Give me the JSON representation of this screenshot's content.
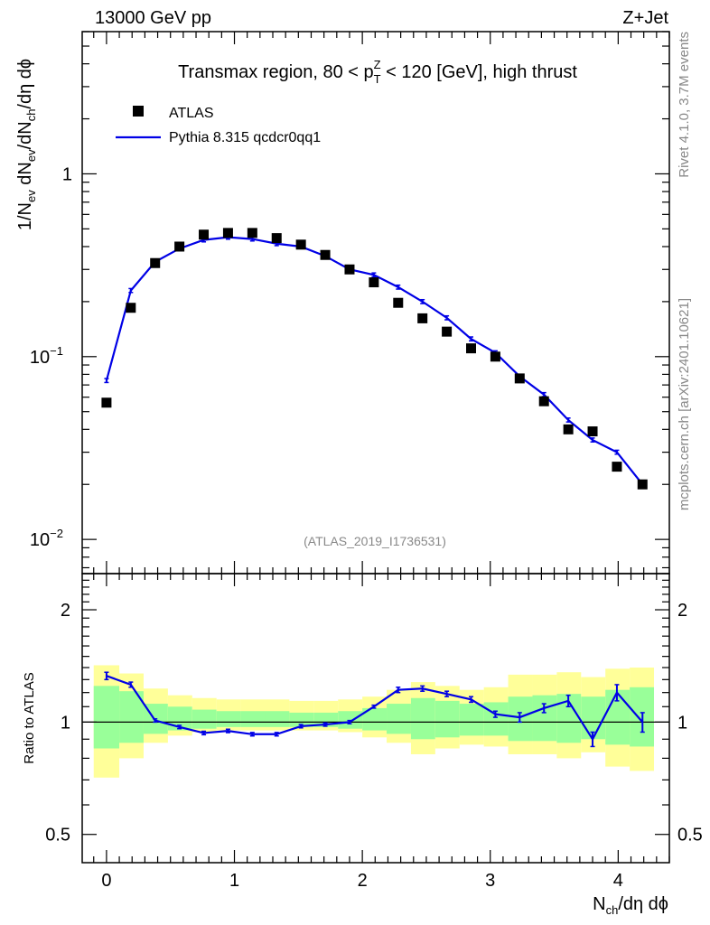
{
  "header": {
    "energy_label": "13000 GeV pp",
    "process_label": "Z+Jet"
  },
  "side_labels": {
    "rivet": "Rivet 4.1.0,  3.7M events",
    "mcplots": "mcplots.cern.ch [arXiv:2401.10621]"
  },
  "chart_data": [
    {
      "type": "line",
      "title": "Transmax region, 80 < pT^Z < 120 [GeV], high thrust",
      "title_parts": {
        "a": "Transmax region, 80 < p",
        "sup": "Z",
        "sub": "T",
        "b": " < 120 [GeV], high thrust"
      },
      "analysis_label": "(ATLAS_2019_I1736531)",
      "ylabel": "1/Nev dNev/dNch/dη dϕ",
      "yscale": "log",
      "ylim": [
        0.0065,
        6.0
      ],
      "y_ticks": [
        {
          "v": 0.01,
          "m": "10",
          "e": "−2"
        },
        {
          "v": 0.1,
          "m": "10",
          "e": "−1"
        },
        {
          "v": 1,
          "m": "1",
          "e": ""
        }
      ],
      "legend": [
        {
          "name": "ATLAS",
          "marker": "square",
          "color": "#000000"
        },
        {
          "name": "Pythia 8.315 qcdcr0qq1",
          "marker": "line",
          "color": "#0000e6"
        }
      ],
      "x": [
        0.0,
        0.19,
        0.38,
        0.57,
        0.76,
        0.95,
        1.14,
        1.33,
        1.52,
        1.71,
        1.9,
        2.09,
        2.28,
        2.47,
        2.66,
        2.85,
        3.04,
        3.23,
        3.42,
        3.61,
        3.8,
        3.99,
        4.19
      ],
      "series": [
        {
          "name": "ATLAS",
          "color": "#000000",
          "values": [
            0.056,
            0.185,
            0.325,
            0.4,
            0.465,
            0.475,
            0.475,
            0.445,
            0.41,
            0.36,
            0.3,
            0.255,
            0.197,
            0.162,
            0.137,
            0.111,
            0.1,
            0.076,
            0.057,
            0.04,
            0.039,
            0.025,
            0.02
          ]
        },
        {
          "name": "Pythia 8.315 qcdcr0qq1",
          "color": "#0000e6",
          "values": [
            0.074,
            0.23,
            0.33,
            0.39,
            0.435,
            0.45,
            0.44,
            0.415,
            0.4,
            0.355,
            0.3,
            0.28,
            0.24,
            0.2,
            0.163,
            0.125,
            0.105,
            0.078,
            0.062,
            0.045,
            0.035,
            0.03,
            0.02
          ]
        }
      ]
    },
    {
      "type": "line",
      "title": "",
      "xlabel": "Nch/dη dϕ",
      "xlabel_parts": {
        "a": "N",
        "sub": "ch",
        "b": "/dη dϕ"
      },
      "ylabel": "Ratio to ATLAS",
      "yscale": "log",
      "ylim": [
        0.42,
        2.5
      ],
      "xlim": [
        -0.19,
        4.4
      ],
      "x_ticks": [
        0,
        1,
        2,
        3,
        4
      ],
      "y_ticks": [
        {
          "v": 0.5,
          "m": "0.5"
        },
        {
          "v": 1,
          "m": "1"
        },
        {
          "v": 2,
          "m": "2"
        }
      ],
      "bin_edges": [
        -0.1,
        0.1,
        0.29,
        0.48,
        0.67,
        0.86,
        1.05,
        1.24,
        1.43,
        1.62,
        1.81,
        2.0,
        2.19,
        2.38,
        2.57,
        2.76,
        2.95,
        3.14,
        3.33,
        3.52,
        3.71,
        3.9,
        4.09,
        4.28
      ],
      "band_yellow": {
        "upper": [
          1.42,
          1.35,
          1.23,
          1.18,
          1.16,
          1.15,
          1.15,
          1.15,
          1.14,
          1.14,
          1.15,
          1.17,
          1.22,
          1.28,
          1.25,
          1.22,
          1.24,
          1.34,
          1.34,
          1.36,
          1.32,
          1.39,
          1.4
        ],
        "lower": [
          0.71,
          0.8,
          0.88,
          0.92,
          0.94,
          0.95,
          0.95,
          0.95,
          0.95,
          0.95,
          0.94,
          0.91,
          0.88,
          0.82,
          0.85,
          0.87,
          0.86,
          0.82,
          0.82,
          0.8,
          0.83,
          0.76,
          0.74
        ]
      },
      "band_green": {
        "upper": [
          1.25,
          1.21,
          1.12,
          1.1,
          1.08,
          1.07,
          1.07,
          1.07,
          1.06,
          1.06,
          1.07,
          1.09,
          1.12,
          1.16,
          1.14,
          1.12,
          1.13,
          1.17,
          1.18,
          1.19,
          1.17,
          1.22,
          1.24
        ],
        "lower": [
          0.85,
          0.88,
          0.93,
          0.95,
          0.96,
          0.97,
          0.97,
          0.97,
          0.97,
          0.97,
          0.96,
          0.95,
          0.93,
          0.9,
          0.91,
          0.92,
          0.92,
          0.89,
          0.89,
          0.88,
          0.9,
          0.87,
          0.86
        ]
      },
      "x": [
        0.0,
        0.19,
        0.38,
        0.57,
        0.76,
        0.95,
        1.14,
        1.33,
        1.52,
        1.71,
        1.9,
        2.09,
        2.28,
        2.47,
        2.66,
        2.85,
        3.04,
        3.23,
        3.42,
        3.61,
        3.8,
        3.99,
        4.19
      ],
      "series": [
        {
          "name": "Pythia 8.315 qcdcr0qq1 / ATLAS",
          "color": "#0000e6",
          "values": [
            1.33,
            1.26,
            1.01,
            0.97,
            0.935,
            0.947,
            0.928,
            0.928,
            0.975,
            0.985,
            1.0,
            1.1,
            1.22,
            1.23,
            1.19,
            1.15,
            1.05,
            1.03,
            1.09,
            1.14,
            0.9,
            1.2,
            1.0
          ],
          "errors": [
            0.03,
            0.02,
            0.01,
            0.01,
            0.01,
            0.01,
            0.01,
            0.01,
            0.01,
            0.01,
            0.01,
            0.01,
            0.02,
            0.02,
            0.02,
            0.02,
            0.02,
            0.03,
            0.03,
            0.04,
            0.04,
            0.06,
            0.06
          ]
        }
      ],
      "reference_line": 1
    }
  ]
}
